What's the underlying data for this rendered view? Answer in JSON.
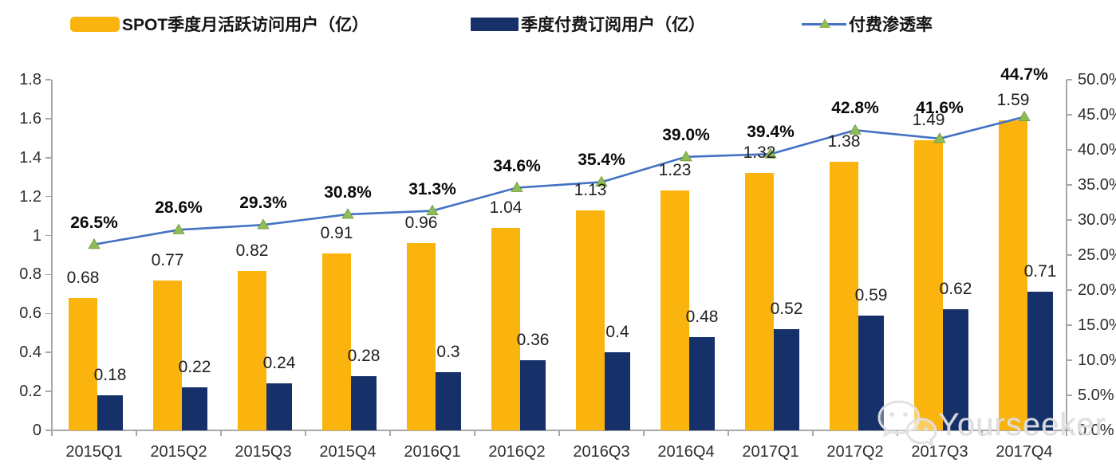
{
  "legend": [
    {
      "id": "mau",
      "label": "SPOT季度月活跃访问用户（亿）",
      "type": "bar",
      "color": "#FBB40E"
    },
    {
      "id": "subs",
      "label": "季度付费订阅用户（亿）",
      "type": "bar",
      "color": "#16306A"
    },
    {
      "id": "pen",
      "label": "付费渗透率",
      "type": "line",
      "color": "#4472C4",
      "marker_color": "#8FBC55"
    }
  ],
  "watermark": {
    "icon": "wechat-icon",
    "text": "Yourseeker"
  },
  "chart_data": {
    "type": "bar",
    "subtype": "combo-bar-line",
    "title": "",
    "categories": [
      "2015Q1",
      "2015Q2",
      "2015Q3",
      "2015Q4",
      "2016Q1",
      "2016Q2",
      "2016Q3",
      "2016Q4",
      "2017Q1",
      "2017Q2",
      "2017Q3",
      "2017Q4"
    ],
    "series": [
      {
        "name": "SPOT季度月活跃访问用户（亿）",
        "type": "bar",
        "axis": "left",
        "color": "#FBB40E",
        "values": [
          0.68,
          0.77,
          0.82,
          0.91,
          0.96,
          1.04,
          1.13,
          1.23,
          1.32,
          1.38,
          1.49,
          1.59
        ],
        "labels": [
          "0.68",
          "0.77",
          "0.82",
          "0.91",
          "0.96",
          "1.04",
          "1.13",
          "1.23",
          "1.32",
          "1.38",
          "1.49",
          "1.59"
        ]
      },
      {
        "name": "季度付费订阅用户（亿）",
        "type": "bar",
        "axis": "left",
        "color": "#16306A",
        "values": [
          0.18,
          0.22,
          0.24,
          0.28,
          0.3,
          0.36,
          0.4,
          0.48,
          0.52,
          0.59,
          0.62,
          0.71
        ],
        "labels": [
          "0.18",
          "0.22",
          "0.24",
          "0.28",
          "0.3",
          "0.36",
          "0.4",
          "0.48",
          "0.52",
          "0.59",
          "0.62",
          "0.71"
        ]
      },
      {
        "name": "付费渗透率",
        "type": "line",
        "axis": "right",
        "color": "#4472C4",
        "marker": "triangle",
        "marker_color": "#8FBC55",
        "values": [
          26.5,
          28.6,
          29.3,
          30.8,
          31.3,
          34.6,
          35.4,
          39.0,
          39.4,
          42.8,
          41.6,
          44.7
        ],
        "labels": [
          "26.5%",
          "28.6%",
          "29.3%",
          "30.8%",
          "31.3%",
          "34.6%",
          "35.4%",
          "39.0%",
          "39.4%",
          "42.8%",
          "41.6%",
          "44.7%"
        ]
      }
    ],
    "left_axis": {
      "min": 0,
      "max": 1.8,
      "step": 0.2,
      "ticks": [
        "0",
        "0.2",
        "0.4",
        "0.6",
        "0.8",
        "1",
        "1.2",
        "1.4",
        "1.6",
        "1.8"
      ]
    },
    "right_axis": {
      "min": 0,
      "max": 50,
      "step": 5,
      "ticks": [
        "0.0%",
        "5.0%",
        "10.0%",
        "15.0%",
        "20.0%",
        "25.0%",
        "30.0%",
        "35.0%",
        "40.0%",
        "45.0%",
        "50.0%"
      ]
    },
    "grid": false,
    "legend_position": "top"
  }
}
